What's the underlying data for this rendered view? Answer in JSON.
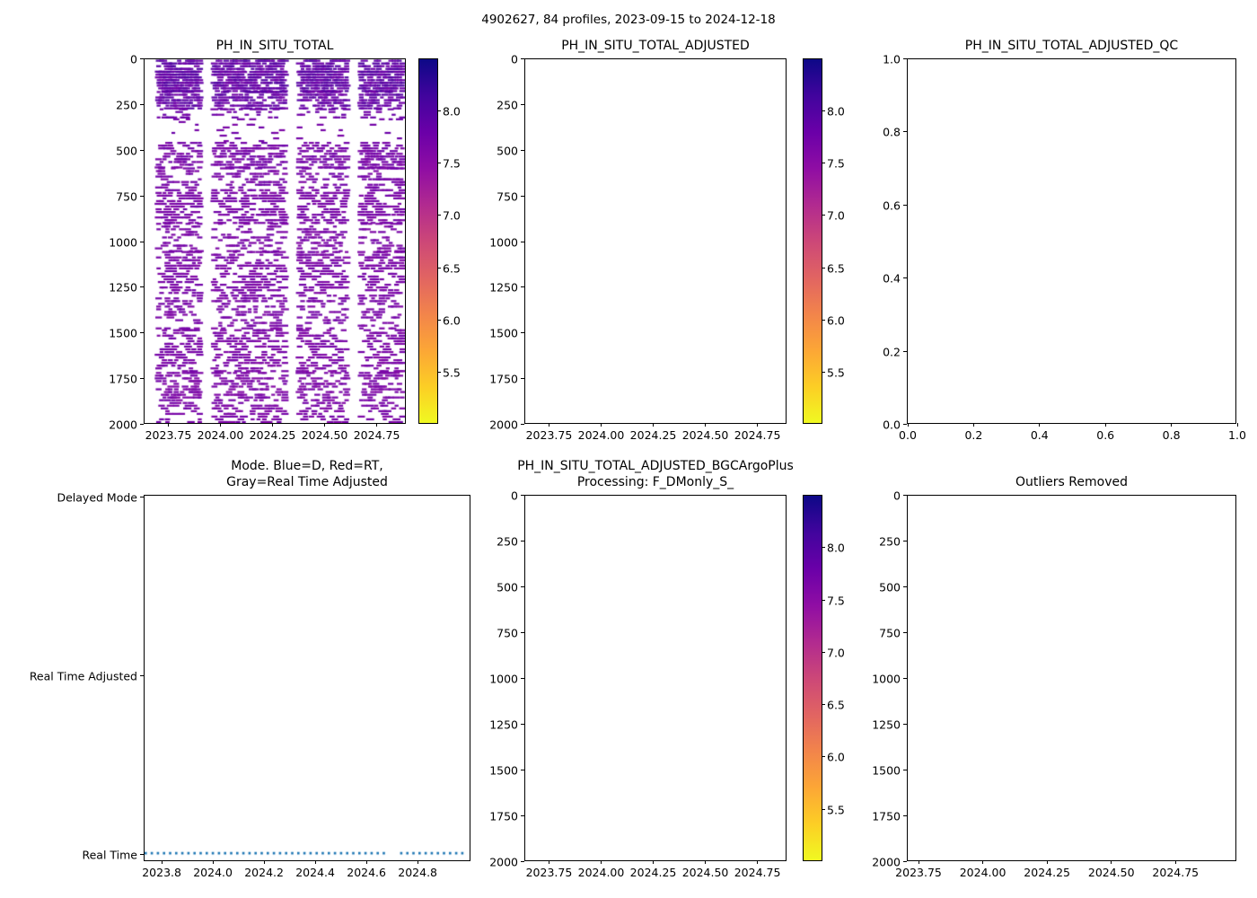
{
  "figure": {
    "suptitle": "4902627, 84 profiles, 2023-09-15 to 2024-12-18",
    "background": "#ffffff",
    "text_color": "#000000"
  },
  "colormap_plasma": [
    "#0d0887",
    "#41049d",
    "#6a00a8",
    "#8f0da4",
    "#b12a90",
    "#cc4778",
    "#e16462",
    "#f2844b",
    "#fca636",
    "#fcce25",
    "#f0f921"
  ],
  "chart_data": [
    {
      "id": "ph_in_situ_total",
      "type": "scatter",
      "title": "PH_IN_SITU_TOTAL",
      "grid": false,
      "x": {
        "lim": [
          2023.636,
          2024.894
        ],
        "ticks": [
          2023.75,
          2024.0,
          2024.25,
          2024.5,
          2024.75
        ],
        "tick_labels": [
          "2023.75",
          "2024.00",
          "2024.25",
          "2024.50",
          "2024.75"
        ]
      },
      "y": {
        "lim": [
          0,
          2000
        ],
        "ticks": [
          0,
          250,
          500,
          750,
          1000,
          1250,
          1500,
          1750,
          2000
        ],
        "tick_labels": [
          "0",
          "250",
          "500",
          "750",
          "1000",
          "1250",
          "1500",
          "1750",
          "2000"
        ]
      },
      "colorbar": {
        "vmin": 5.0,
        "vmax": 8.5,
        "ticks": [
          8.0,
          7.5,
          7.0,
          6.5,
          6.0,
          5.5
        ],
        "tick_labels": [
          "8.0",
          "7.5",
          "7.0",
          "6.5",
          "6.0",
          "5.5"
        ],
        "cmap": "plasma_r"
      },
      "scatter": {
        "seed": 42,
        "profile_times": {
          "start": 2023.704,
          "end": 2024.882,
          "count": 84
        },
        "time_gaps": [
          [
            2023.915,
            2023.962
          ],
          [
            2024.325,
            2024.372
          ],
          [
            2024.625,
            2024.678
          ]
        ],
        "depth_step": 15,
        "dash": {
          "width_min": 4,
          "width_max": 9,
          "height": 2.2
        },
        "bands": [
          {
            "depth": [
              8,
              70
            ],
            "density": 0.62,
            "ph": [
              7.72,
              8.05
            ]
          },
          {
            "depth": [
              70,
              180
            ],
            "density": 0.72,
            "ph": [
              7.72,
              8.05
            ]
          },
          {
            "depth": [
              180,
              275
            ],
            "density": 0.52,
            "ph": [
              7.7,
              8.0
            ]
          },
          {
            "depth": [
              275,
              330
            ],
            "density": 0.18,
            "ph": [
              7.65,
              7.85
            ]
          },
          {
            "depth": [
              330,
              460
            ],
            "density": 0.05,
            "ph": [
              7.62,
              7.8
            ]
          },
          {
            "depth": [
              460,
              600
            ],
            "density": 0.44,
            "ph": [
              7.6,
              7.8
            ]
          },
          {
            "depth": [
              600,
              720
            ],
            "density": 0.27,
            "ph": [
              7.6,
              7.78
            ]
          },
          {
            "depth": [
              720,
              905
            ],
            "density": 0.43,
            "ph": [
              7.58,
              7.76
            ]
          },
          {
            "depth": [
              905,
              1060
            ],
            "density": 0.27,
            "ph": [
              7.58,
              7.75
            ]
          },
          {
            "depth": [
              1060,
              1210
            ],
            "density": 0.38,
            "ph": [
              7.58,
              7.75
            ]
          },
          {
            "depth": [
              1210,
              1345
            ],
            "density": 0.33,
            "ph": [
              7.58,
              7.75
            ]
          },
          {
            "depth": [
              1345,
              1490
            ],
            "density": 0.24,
            "ph": [
              7.58,
              7.75
            ]
          },
          {
            "depth": [
              1490,
              1725
            ],
            "density": 0.34,
            "ph": [
              7.56,
              7.74
            ]
          },
          {
            "depth": [
              1725,
              2000
            ],
            "density": 0.32,
            "ph": [
              7.56,
              7.74
            ]
          }
        ]
      }
    },
    {
      "id": "ph_in_situ_total_adjusted",
      "type": "scatter-empty",
      "title": "PH_IN_SITU_TOTAL_ADJUSTED",
      "grid": false,
      "x": {
        "lim": [
          2023.636,
          2024.894
        ],
        "ticks": [
          2023.75,
          2024.0,
          2024.25,
          2024.5,
          2024.75
        ],
        "tick_labels": [
          "2023.75",
          "2024.00",
          "2024.25",
          "2024.50",
          "2024.75"
        ]
      },
      "y": {
        "lim": [
          0,
          2000
        ],
        "ticks": [
          0,
          250,
          500,
          750,
          1000,
          1250,
          1500,
          1750,
          2000
        ],
        "tick_labels": [
          "0",
          "250",
          "500",
          "750",
          "1000",
          "1250",
          "1500",
          "1750",
          "2000"
        ]
      },
      "colorbar": {
        "vmin": 5.0,
        "vmax": 8.5,
        "ticks": [
          8.0,
          7.5,
          7.0,
          6.5,
          6.0,
          5.5
        ],
        "tick_labels": [
          "8.0",
          "7.5",
          "7.0",
          "6.5",
          "6.0",
          "5.5"
        ],
        "cmap": "plasma_r"
      }
    },
    {
      "id": "ph_in_situ_total_adjusted_qc",
      "type": "scatter-empty",
      "title": "PH_IN_SITU_TOTAL_ADJUSTED_QC",
      "grid": false,
      "x": {
        "lim": [
          0,
          1
        ],
        "ticks": [
          0,
          0.2,
          0.4,
          0.6,
          0.8,
          1.0
        ],
        "tick_labels": [
          "0.0",
          "0.2",
          "0.4",
          "0.6",
          "0.8",
          "1.0"
        ]
      },
      "y": {
        "lim": [
          1,
          0
        ],
        "ticks": [
          1.0,
          0.8,
          0.6,
          0.4,
          0.2,
          0.0
        ],
        "tick_labels": [
          "1.0",
          "0.8",
          "0.6",
          "0.4",
          "0.2",
          "0.0"
        ]
      }
    },
    {
      "id": "mode",
      "type": "line",
      "title": "Mode. Blue=D, Red=RT,\nGray=Real Time Adjusted",
      "grid": false,
      "x": {
        "lim": [
          2023.733,
          2025.01
        ],
        "ticks": [
          2023.8,
          2024.0,
          2024.2,
          2024.4,
          2024.6,
          2024.8
        ],
        "tick_labels": [
          "2023.8",
          "2024.0",
          "2024.2",
          "2024.4",
          "2024.6",
          "2024.8"
        ]
      },
      "y": {
        "lim": [
          2.01,
          -0.04
        ],
        "ticks": [
          2,
          1,
          0
        ],
        "tick_labels": [
          "Delayed Mode",
          "Real Time Adjusted",
          "Real Time"
        ]
      },
      "line": {
        "color": "#1f77b4",
        "style": "dotted",
        "width": 2.6,
        "dash_pattern": [
          2.6,
          4.2
        ],
        "level_label": "Real Time",
        "level_value": 0,
        "segments": [
          [
            2023.7,
            2024.685
          ],
          [
            2024.737,
            2025.0
          ]
        ]
      }
    },
    {
      "id": "ph_in_situ_total_adjusted_bgcargoplus",
      "type": "scatter-empty",
      "title": "PH_IN_SITU_TOTAL_ADJUSTED_BGCArgoPlus\nProcessing: F_DMonly_S_",
      "grid": false,
      "x": {
        "lim": [
          2023.636,
          2024.894
        ],
        "ticks": [
          2023.75,
          2024.0,
          2024.25,
          2024.5,
          2024.75
        ],
        "tick_labels": [
          "2023.75",
          "2024.00",
          "2024.25",
          "2024.50",
          "2024.75"
        ]
      },
      "y": {
        "lim": [
          0,
          2000
        ],
        "ticks": [
          0,
          250,
          500,
          750,
          1000,
          1250,
          1500,
          1750,
          2000
        ],
        "tick_labels": [
          "0",
          "250",
          "500",
          "750",
          "1000",
          "1250",
          "1500",
          "1750",
          "2000"
        ]
      },
      "colorbar": {
        "vmin": 5.0,
        "vmax": 8.5,
        "ticks": [
          8.0,
          7.5,
          7.0,
          6.5,
          6.0,
          5.5
        ],
        "tick_labels": [
          "8.0",
          "7.5",
          "7.0",
          "6.5",
          "6.0",
          "5.5"
        ],
        "cmap": "plasma_r"
      }
    },
    {
      "id": "outliers_removed",
      "type": "scatter-empty",
      "title": "Outliers Removed",
      "grid": false,
      "x": {
        "lim": [
          2023.708,
          2024.99
        ],
        "ticks": [
          2023.75,
          2024.0,
          2024.25,
          2024.5,
          2024.75
        ],
        "tick_labels": [
          "2023.75",
          "2024.00",
          "2024.25",
          "2024.50",
          "2024.75"
        ]
      },
      "y": {
        "lim": [
          0,
          2000
        ],
        "ticks": [
          0,
          250,
          500,
          750,
          1000,
          1250,
          1500,
          1750,
          2000
        ],
        "tick_labels": [
          "0",
          "250",
          "500",
          "750",
          "1000",
          "1250",
          "1500",
          "1750",
          "2000"
        ]
      }
    }
  ]
}
